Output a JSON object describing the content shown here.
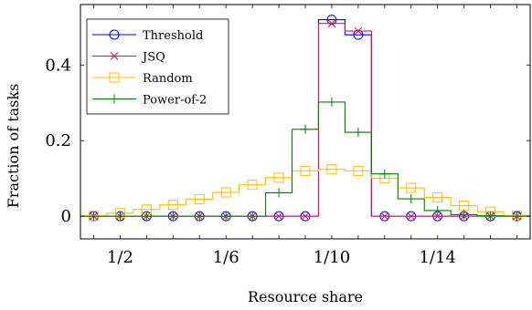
{
  "chart_data": {
    "type": "line",
    "xlabel": "Resource share",
    "ylabel": "Fraction of tasks",
    "x_bins": 17,
    "x_tick_labels": [
      "1/2",
      "1/6",
      "1/10",
      "1/14"
    ],
    "x_tick_bins": [
      2,
      6,
      10,
      14
    ],
    "y_ticks": [
      0,
      0.2,
      0.4
    ],
    "y_tick_labels": [
      "0",
      "0.2",
      "0.4"
    ],
    "ylim": [
      -0.06,
      0.56
    ],
    "legend_position": "top-left",
    "grid": false,
    "series": [
      {
        "name": "Threshold",
        "color": "#0000ff",
        "marker": "circle",
        "values": [
          0,
          0,
          0,
          0,
          0,
          0,
          0,
          0,
          0,
          0.52,
          0.48,
          0,
          0,
          0,
          0,
          0,
          0
        ]
      },
      {
        "name": "JSQ",
        "color": "#e0115f",
        "marker": "x",
        "values": [
          0,
          0,
          0,
          0,
          0,
          0,
          0,
          0,
          0,
          0.51,
          0.49,
          0,
          0,
          0,
          0,
          0,
          0
        ]
      },
      {
        "name": "Random",
        "color": "#ffbf00",
        "marker": "square",
        "values": [
          0.001,
          0.008,
          0.018,
          0.03,
          0.045,
          0.063,
          0.083,
          0.102,
          0.12,
          0.124,
          0.12,
          0.1,
          0.075,
          0.05,
          0.028,
          0.012,
          0.002
        ]
      },
      {
        "name": "Power-of-2",
        "color": "#008000",
        "marker": "plus",
        "values": [
          0,
          0,
          0,
          0,
          0,
          0,
          0,
          0.062,
          0.23,
          0.302,
          0.222,
          0.112,
          0.046,
          0.015,
          0.004,
          0.001,
          0
        ]
      }
    ]
  }
}
